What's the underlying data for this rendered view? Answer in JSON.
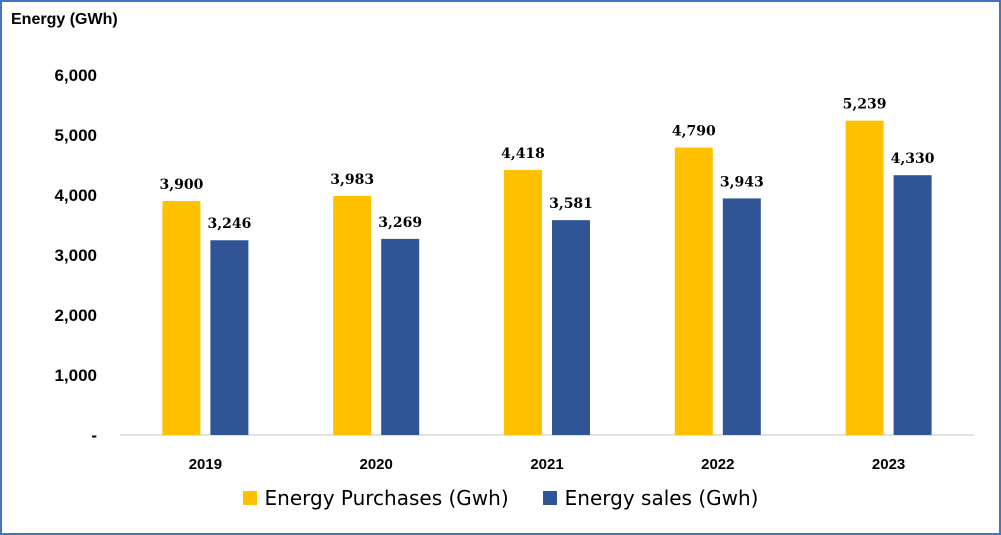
{
  "chart_data": {
    "type": "bar",
    "title": "",
    "ylabel": "Energy (GWh)",
    "xlabel": "",
    "categories": [
      "2019",
      "2020",
      "2021",
      "2022",
      "2023"
    ],
    "series": [
      {
        "name": "Energy Purchases (Gwh)",
        "color": "#FFC000",
        "values": [
          3900,
          3983,
          4418,
          4790,
          5239
        ],
        "labels": [
          "3,900",
          "3,983",
          "4,418",
          "4,790",
          "5,239"
        ]
      },
      {
        "name": "Energy sales (Gwh)",
        "color": "#2F5597",
        "values": [
          3246,
          3269,
          3581,
          3943,
          4330
        ],
        "labels": [
          "3,246",
          "3,269",
          "3,581",
          "3,943",
          "4,330"
        ]
      }
    ],
    "ylim": [
      0,
      6000
    ],
    "yticks": [
      0,
      1000,
      2000,
      3000,
      4000,
      5000,
      6000
    ],
    "ytick_labels": [
      "-",
      "1,000",
      "2,000",
      "3,000",
      "4,000",
      "5,000",
      "6,000"
    ],
    "grid": false,
    "legend_position": "bottom"
  }
}
